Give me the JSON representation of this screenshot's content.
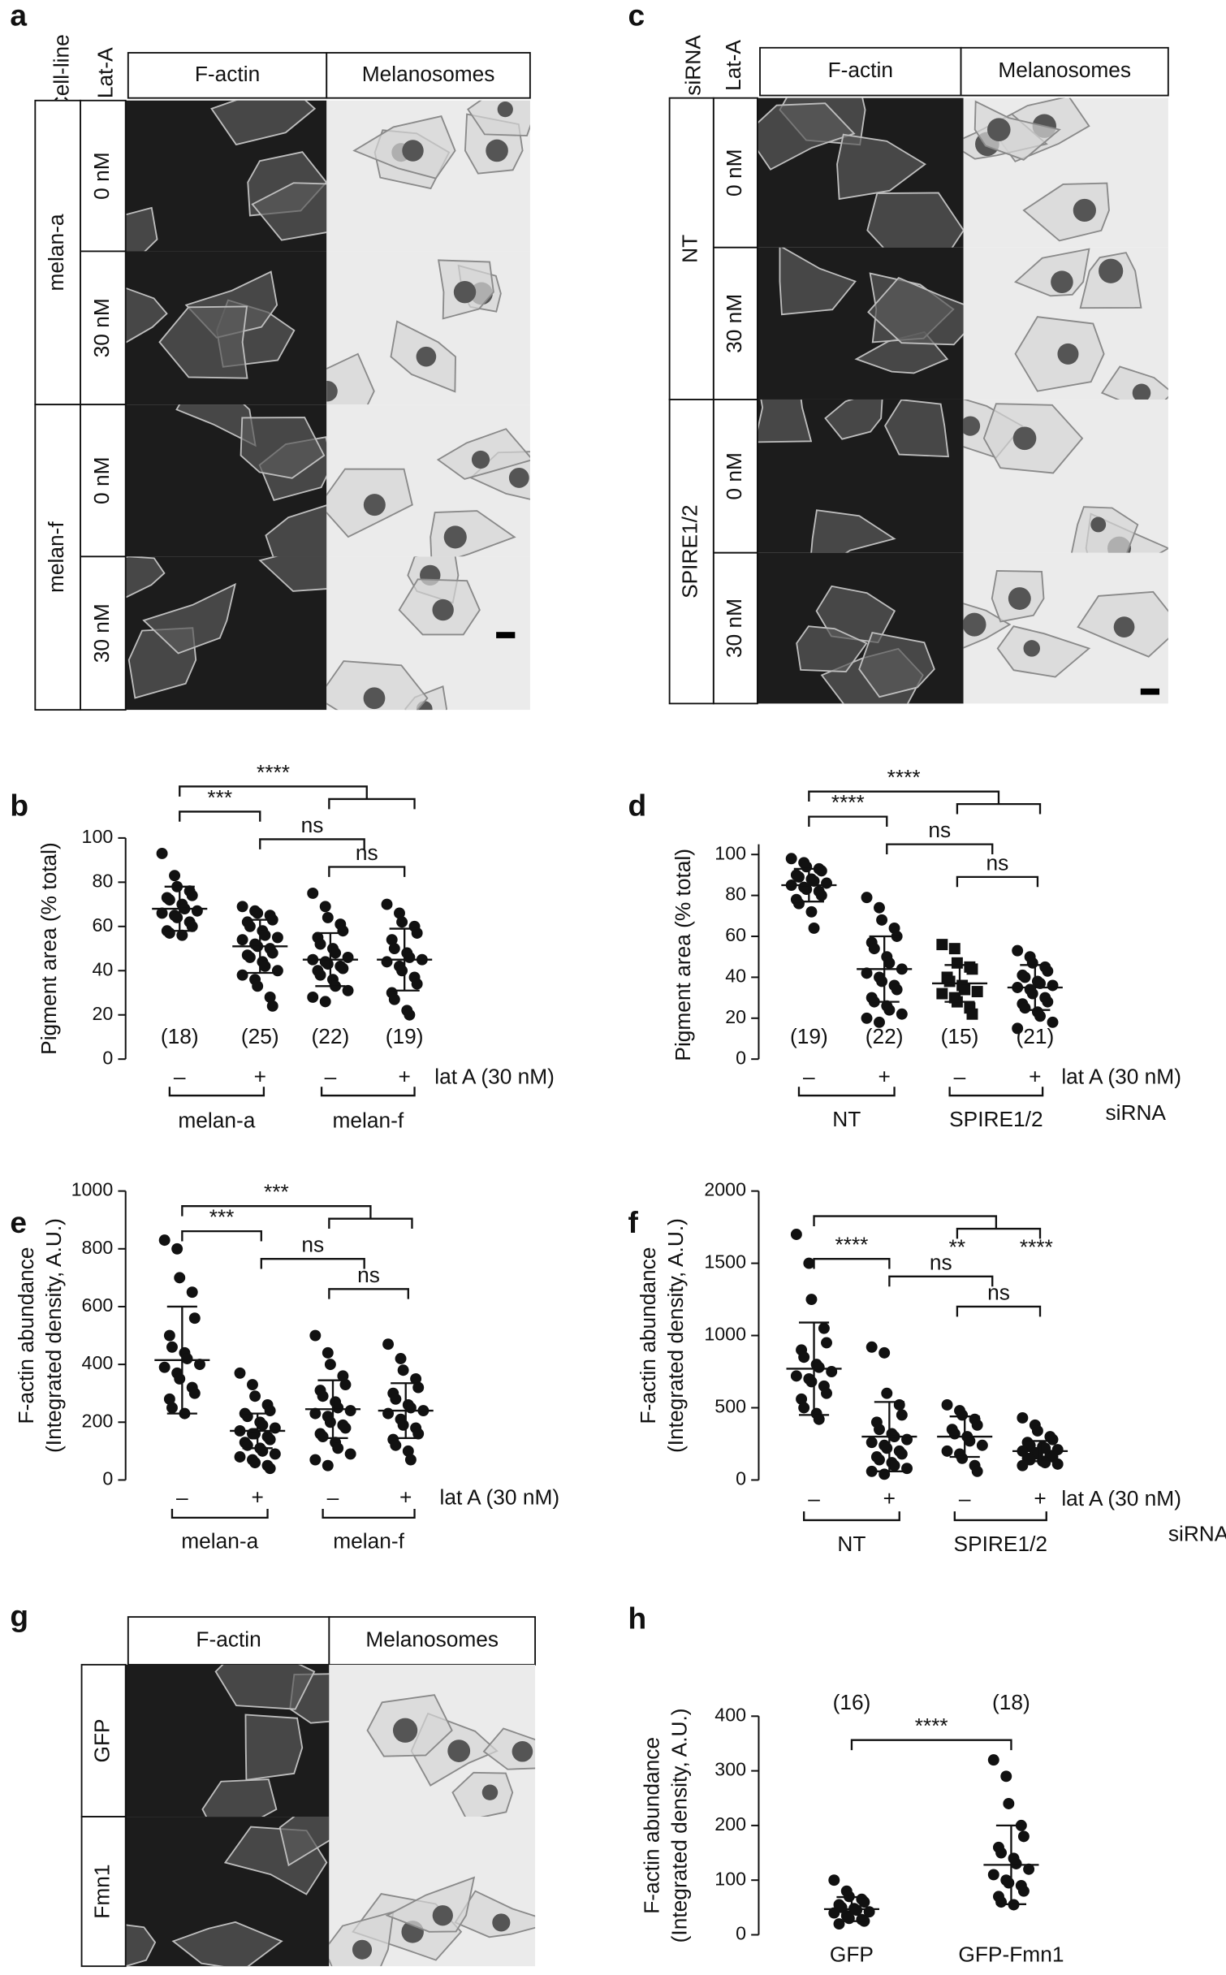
{
  "figures": {
    "a": {
      "label": "a",
      "header": [
        "Cell-line",
        "Lat-A",
        "F-actin",
        "Melanosomes"
      ],
      "groups": [
        "melan-a",
        "melan-f"
      ],
      "rows": [
        "0 nM",
        "30 nM",
        "0 nM",
        "30 nM"
      ]
    },
    "c": {
      "label": "c",
      "header": [
        "siRNA",
        "Lat-A",
        "F-actin",
        "Melanosomes"
      ],
      "groups": [
        "NT",
        "SPIRE1/2"
      ],
      "rows": [
        "0 nM",
        "30 nM",
        "0 nM",
        "30 nM"
      ]
    },
    "g": {
      "label": "g",
      "header": [
        "F-actin",
        "Melanosomes"
      ],
      "rows": [
        "GFP",
        "Fmn1"
      ]
    }
  },
  "chart_data": [
    {
      "panel_label": "b",
      "type": "dotplot",
      "y_label": "Pigment area (% total)",
      "categories": [
        "–",
        "+",
        "–",
        "+"
      ],
      "x_label": "lat A (30 nM)",
      "category_groups": [
        "melan-a",
        "melan-f"
      ],
      "count_labels": [
        "(18)",
        "(25)",
        "(22)",
        "(19)"
      ],
      "color": "#111111",
      "ylim": [
        0,
        100
      ],
      "yticks": [
        0,
        20,
        40,
        60,
        80,
        100
      ],
      "groups": [
        {
          "values": [
            93,
            83,
            78,
            76,
            74,
            73,
            72,
            70,
            68,
            67,
            66,
            65,
            64,
            62,
            60,
            58,
            57,
            56
          ],
          "mean": 68,
          "sd": 10
        },
        {
          "values": [
            69,
            67,
            66,
            65,
            63,
            62,
            60,
            58,
            56,
            55,
            54,
            52,
            51,
            50,
            48,
            47,
            46,
            44,
            42,
            40,
            38,
            36,
            33,
            28,
            24
          ],
          "mean": 51,
          "sd": 12
        },
        {
          "values": [
            75,
            69,
            64,
            61,
            58,
            55,
            52,
            50,
            48,
            46,
            45,
            44,
            43,
            42,
            41,
            40,
            38,
            36,
            33,
            31,
            28,
            26
          ],
          "mean": 45,
          "sd": 12
        },
        {
          "values": [
            70,
            66,
            62,
            60,
            57,
            54,
            50,
            48,
            46,
            45,
            44,
            42,
            40,
            37,
            34,
            30,
            27,
            22,
            20
          ],
          "mean": 45,
          "sd": 14
        }
      ],
      "comparisons": [
        "****",
        "***",
        "ns",
        "ns"
      ]
    },
    {
      "panel_label": "d",
      "type": "dotplot",
      "y_label": "Pigment area (% total)",
      "categories": [
        "–",
        "+",
        "–",
        "+"
      ],
      "x_label": "lat A (30 nM)",
      "category_groups": [
        "NT",
        "SPIRE1/2"
      ],
      "group_title": "siRNA",
      "count_labels": [
        "(19)",
        "(22)",
        "(15)",
        "(21)"
      ],
      "color": "#111111",
      "ylim": [
        0,
        105
      ],
      "yticks": [
        0,
        20,
        40,
        60,
        80,
        100
      ],
      "groups": [
        {
          "values": [
            98,
            96,
            94,
            93,
            92,
            90,
            89,
            88,
            87,
            86,
            85,
            84,
            83,
            82,
            80,
            78,
            76,
            72,
            64
          ],
          "mean": 85,
          "sd": 8
        },
        {
          "values": [
            79,
            74,
            68,
            64,
            60,
            57,
            54,
            50,
            47,
            44,
            42,
            40,
            38,
            36,
            34,
            30,
            28,
            26,
            24,
            22,
            20,
            18
          ],
          "mean": 44,
          "sd": 16
        },
        {
          "values": [
            56,
            54,
            47,
            45,
            44,
            40,
            38,
            36,
            34,
            33,
            32,
            30,
            28,
            25,
            22
          ],
          "mean": 37,
          "sd": 9,
          "marker": "square"
        },
        {
          "values": [
            53,
            50,
            47,
            45,
            43,
            41,
            40,
            38,
            37,
            36,
            35,
            34,
            32,
            30,
            28,
            27,
            25,
            23,
            21,
            18,
            15
          ],
          "mean": 35,
          "sd": 11
        }
      ],
      "comparisons": [
        "****",
        "****",
        "ns",
        "ns"
      ]
    },
    {
      "panel_label": "e",
      "type": "dotplot",
      "y_label": [
        "F-actin abundance",
        "(Integrated density, A.U.)"
      ],
      "categories": [
        "–",
        "+",
        "–",
        "+"
      ],
      "x_label": "lat A (30 nM)",
      "category_groups": [
        "melan-a",
        "melan-f"
      ],
      "color": "#111111",
      "ylim": [
        0,
        1000
      ],
      "yticks": [
        0,
        200,
        400,
        600,
        800,
        1000
      ],
      "groups": [
        {
          "values": [
            830,
            800,
            700,
            650,
            560,
            500,
            460,
            440,
            420,
            400,
            390,
            370,
            350,
            320,
            300,
            280,
            250,
            230
          ],
          "mean": 415,
          "sd": 185
        },
        {
          "values": [
            370,
            330,
            290,
            260,
            240,
            230,
            220,
            200,
            190,
            180,
            170,
            160,
            160,
            150,
            140,
            130,
            120,
            110,
            100,
            90,
            80,
            70,
            60,
            50,
            40
          ],
          "mean": 170,
          "sd": 60
        },
        {
          "values": [
            500,
            440,
            400,
            360,
            330,
            310,
            290,
            270,
            250,
            240,
            230,
            220,
            200,
            190,
            180,
            160,
            150,
            130,
            110,
            90,
            70,
            50
          ],
          "mean": 245,
          "sd": 100
        },
        {
          "values": [
            470,
            420,
            380,
            350,
            320,
            300,
            280,
            260,
            250,
            240,
            230,
            210,
            190,
            180,
            160,
            140,
            120,
            100,
            70
          ],
          "mean": 240,
          "sd": 95
        }
      ],
      "comparisons": [
        "***",
        "***",
        "ns",
        "ns"
      ]
    },
    {
      "panel_label": "f",
      "type": "dotplot",
      "y_label": [
        "F-actin abundance",
        "(Integrated density, A.U.)"
      ],
      "categories": [
        "–",
        "+",
        "–",
        "+"
      ],
      "x_label": "lat A (30 nM)",
      "category_groups": [
        "NT",
        "SPIRE1/2"
      ],
      "group_title": "siRNA",
      "color": "#111111",
      "ylim": [
        0,
        2000
      ],
      "yticks": [
        0,
        500,
        1000,
        1500,
        2000
      ],
      "groups": [
        {
          "values": [
            1700,
            1500,
            1250,
            1050,
            950,
            900,
            850,
            800,
            780,
            750,
            720,
            700,
            680,
            650,
            600,
            560,
            500,
            460,
            420
          ],
          "mean": 770,
          "sd": 320
        },
        {
          "values": [
            920,
            880,
            600,
            520,
            450,
            400,
            350,
            320,
            300,
            280,
            260,
            240,
            220,
            200,
            180,
            160,
            140,
            120,
            100,
            80,
            60,
            40
          ],
          "mean": 300,
          "sd": 240
        },
        {
          "values": [
            520,
            480,
            450,
            420,
            380,
            350,
            320,
            300,
            270,
            240,
            200,
            180,
            150,
            100,
            60
          ],
          "mean": 300,
          "sd": 140
        },
        {
          "values": [
            430,
            380,
            340,
            300,
            280,
            260,
            240,
            230,
            220,
            210,
            200,
            190,
            180,
            170,
            160,
            150,
            140,
            130,
            120,
            110,
            100
          ],
          "mean": 200,
          "sd": 70
        }
      ],
      "comparisons": [
        "****",
        "**",
        "****",
        "ns",
        "ns"
      ]
    },
    {
      "panel_label": "h",
      "type": "dotplot",
      "y_label": [
        "F-actin abundance",
        "(Integrated density, A.U.)"
      ],
      "categories": [
        "GFP",
        "GFP-Fmn1"
      ],
      "count_labels": [
        "(16)",
        "(18)"
      ],
      "color": "#111111",
      "ylim": [
        0,
        400
      ],
      "yticks": [
        0,
        100,
        200,
        300,
        400
      ],
      "groups": [
        {
          "values": [
            100,
            80,
            70,
            65,
            60,
            55,
            50,
            48,
            45,
            42,
            40,
            35,
            30,
            28,
            25,
            20
          ],
          "mean": 47,
          "sd": 22
        },
        {
          "values": [
            320,
            290,
            240,
            200,
            180,
            160,
            150,
            140,
            130,
            120,
            110,
            100,
            95,
            90,
            80,
            70,
            60,
            55
          ],
          "mean": 128,
          "sd": 72
        }
      ],
      "comparisons": [
        "****"
      ]
    }
  ]
}
